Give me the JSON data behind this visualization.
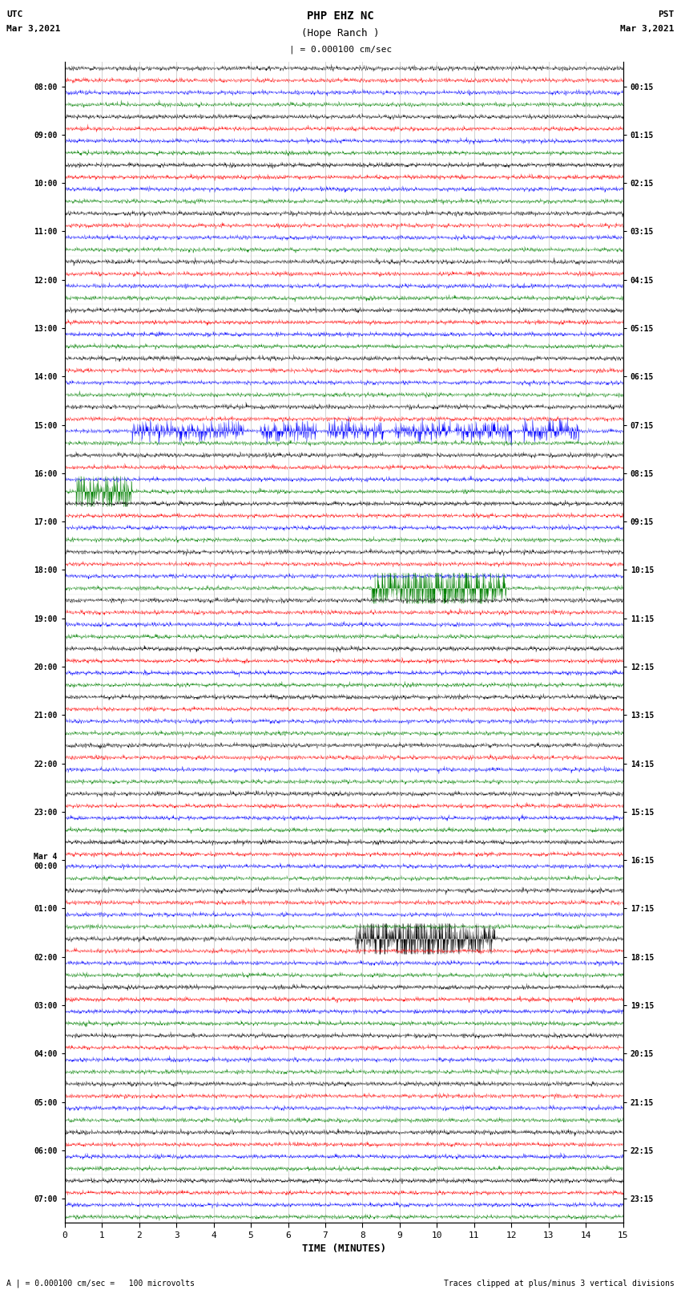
{
  "title_line1": "PHP EHZ NC",
  "title_line2": "(Hope Ranch )",
  "title_line3": "| = 0.000100 cm/sec",
  "left_label_line1": "UTC",
  "left_label_line2": "Mar 3,2021",
  "right_label_line1": "PST",
  "right_label_line2": "Mar 3,2021",
  "utc_times": [
    "08:00",
    "09:00",
    "10:00",
    "11:00",
    "12:00",
    "13:00",
    "14:00",
    "15:00",
    "16:00",
    "17:00",
    "18:00",
    "19:00",
    "20:00",
    "21:00",
    "22:00",
    "23:00",
    "Mar 4\n00:00",
    "01:00",
    "02:00",
    "03:00",
    "04:00",
    "05:00",
    "06:00",
    "07:00"
  ],
  "pst_times": [
    "00:15",
    "01:15",
    "02:15",
    "03:15",
    "04:15",
    "05:15",
    "06:15",
    "07:15",
    "08:15",
    "09:15",
    "10:15",
    "11:15",
    "12:15",
    "13:15",
    "14:15",
    "15:15",
    "16:15",
    "17:15",
    "18:15",
    "19:15",
    "20:15",
    "21:15",
    "22:15",
    "23:15"
  ],
  "colors": [
    "black",
    "red",
    "blue",
    "green"
  ],
  "xlabel": "TIME (MINUTES)",
  "footer_left": "A | = 0.000100 cm/sec =   100 microvolts",
  "footer_right": "Traces clipped at plus/minus 3 vertical divisions",
  "n_rows": 24,
  "traces_per_row": 4,
  "minutes": 15,
  "background_color": "white",
  "figsize": [
    8.5,
    16.13
  ],
  "dpi": 100
}
